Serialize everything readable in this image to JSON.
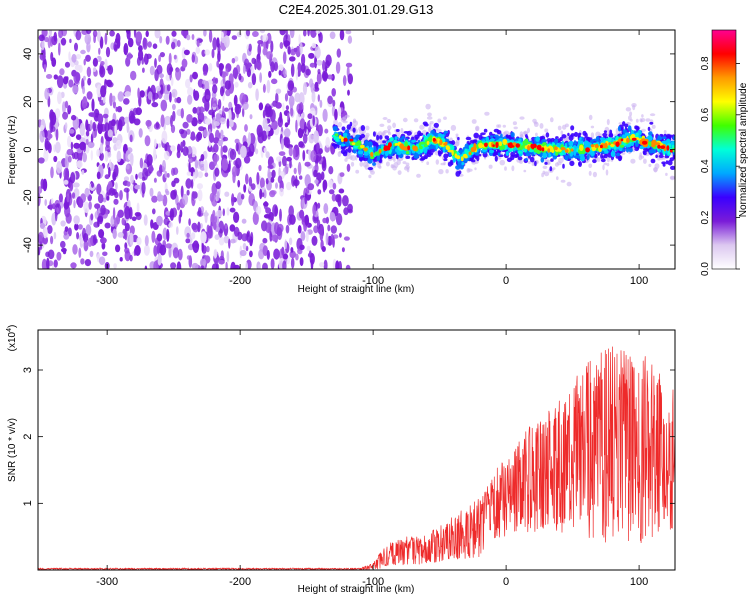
{
  "title": "C2E4.2025.301.01.29.G13",
  "chart_data": [
    {
      "type": "heatmap",
      "name": "spectrogram",
      "xlabel": "Height of straight line (km)",
      "ylabel": "Frequency (Hz)",
      "xlim": [
        -352,
        127
      ],
      "ylim": [
        -50,
        50
      ],
      "x_ticks": [
        -300,
        -200,
        -100,
        0,
        100
      ],
      "x_tick_labels": [
        "-300",
        "-200",
        "-100",
        "0",
        "100"
      ],
      "y_ticks": [
        -40,
        -20,
        0,
        20,
        40
      ],
      "y_tick_labels": [
        "-40",
        "-20",
        "0",
        "20",
        "40"
      ],
      "noise_region_x": [
        -352,
        -125
      ],
      "signal_region_x": [
        -130,
        127
      ],
      "signal_center_track": [
        {
          "x": -130,
          "y": 6
        },
        {
          "x": -115,
          "y": 3
        },
        {
          "x": -100,
          "y": -2
        },
        {
          "x": -85,
          "y": 2
        },
        {
          "x": -70,
          "y": 0
        },
        {
          "x": -55,
          "y": 4
        },
        {
          "x": -45,
          "y": 2
        },
        {
          "x": -35,
          "y": -4
        },
        {
          "x": -20,
          "y": 2
        },
        {
          "x": 0,
          "y": 2
        },
        {
          "x": 20,
          "y": 1
        },
        {
          "x": 40,
          "y": 0
        },
        {
          "x": 60,
          "y": 0
        },
        {
          "x": 80,
          "y": 2
        },
        {
          "x": 95,
          "y": 5
        },
        {
          "x": 110,
          "y": 2
        },
        {
          "x": 127,
          "y": 0
        }
      ],
      "colorbar": {
        "label": "Normalized spectral amplitude",
        "range": [
          0.0,
          0.93
        ],
        "ticks": [
          0.0,
          0.2,
          0.4,
          0.6,
          0.8
        ],
        "tick_labels": [
          "0.0",
          "0.2",
          "0.4",
          "0.6",
          "0.8"
        ],
        "colors": [
          "#ffffff",
          "#dcc8f0",
          "#7a1cd8",
          "#3a00ff",
          "#00a8ff",
          "#00ffd8",
          "#40ff00",
          "#ffff00",
          "#ff9a00",
          "#ff0000",
          "#ff0090"
        ]
      }
    },
    {
      "type": "line",
      "name": "snr",
      "xlabel": "Height of straight line (km)",
      "ylabel": "SNR (10 * v/v)",
      "y_scale_label": "(x10",
      "y_scale_exp": "4",
      "y_scale_close": ")",
      "xlim": [
        -352,
        127
      ],
      "ylim": [
        0,
        3.6
      ],
      "x_ticks": [
        -300,
        -200,
        -100,
        0,
        100
      ],
      "x_tick_labels": [
        "-300",
        "-200",
        "-100",
        "0",
        "100"
      ],
      "y_ticks": [
        1,
        2,
        3
      ],
      "y_tick_labels": [
        "1",
        "2",
        "3"
      ],
      "color": "#ee2a2a",
      "envelope": [
        {
          "x": -352,
          "y": 0.02
        },
        {
          "x": -110,
          "y": 0.03
        },
        {
          "x": -100,
          "y": 0.1
        },
        {
          "x": -90,
          "y": 0.4
        },
        {
          "x": -75,
          "y": 0.5
        },
        {
          "x": -60,
          "y": 0.55
        },
        {
          "x": -50,
          "y": 0.65
        },
        {
          "x": -35,
          "y": 0.9
        },
        {
          "x": -20,
          "y": 1.1
        },
        {
          "x": -10,
          "y": 1.4
        },
        {
          "x": 0,
          "y": 1.8
        },
        {
          "x": 20,
          "y": 2.2
        },
        {
          "x": 40,
          "y": 2.6
        },
        {
          "x": 60,
          "y": 3.1
        },
        {
          "x": 80,
          "y": 3.4
        },
        {
          "x": 100,
          "y": 3.3
        },
        {
          "x": 115,
          "y": 3.0
        },
        {
          "x": 127,
          "y": 2.7
        }
      ],
      "baseline": [
        {
          "x": -352,
          "y": 0.0
        },
        {
          "x": -100,
          "y": 0.0
        },
        {
          "x": -60,
          "y": 0.1
        },
        {
          "x": -20,
          "y": 0.2
        },
        {
          "x": 0,
          "y": 0.5
        },
        {
          "x": 30,
          "y": 0.6
        },
        {
          "x": 60,
          "y": 0.5
        },
        {
          "x": 90,
          "y": 0.3
        },
        {
          "x": 127,
          "y": 0.6
        }
      ]
    }
  ]
}
